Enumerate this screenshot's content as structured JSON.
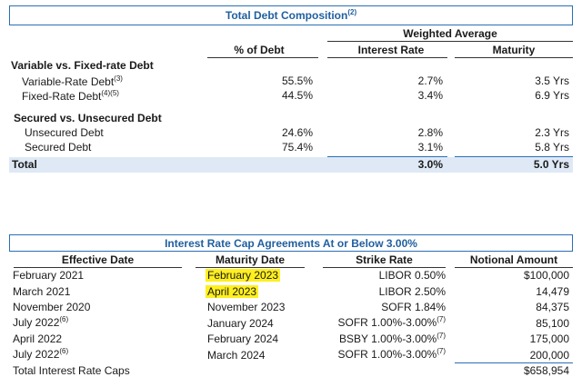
{
  "debt": {
    "title": "Total Debt Composition",
    "title_note": "(2)",
    "group_header": "Weighted Average",
    "col_pct": "% of Debt",
    "col_rate": "Interest Rate",
    "col_maturity": "Maturity",
    "sections": [
      {
        "title": "Variable vs. Fixed-rate Debt",
        "rows": [
          {
            "label": "Variable-Rate Debt",
            "note": "(3)",
            "pct": "55.5%",
            "rate": "2.7%",
            "maturity": "3.5 Yrs"
          },
          {
            "label": "Fixed-Rate Debt",
            "note": "(4)(5)",
            "pct": "44.5%",
            "rate": "3.4%",
            "maturity": "6.9 Yrs"
          }
        ]
      },
      {
        "title": "Secured vs. Unsecured Debt",
        "rows": [
          {
            "label": "Unsecured Debt",
            "note": "",
            "pct": "24.6%",
            "rate": "2.8%",
            "maturity": "2.3 Yrs"
          },
          {
            "label": "Secured Debt",
            "note": "",
            "pct": "75.4%",
            "rate": "3.1%",
            "maturity": "5.8 Yrs"
          }
        ]
      }
    ],
    "total": {
      "label": "Total",
      "rate": "3.0%",
      "maturity": "5.0 Yrs"
    }
  },
  "caps": {
    "title": "Interest Rate Cap Agreements At or Below 3.00%",
    "col_effective": "Effective Date",
    "col_maturity": "Maturity Date",
    "col_strike": "Strike Rate",
    "col_notional": "Notional Amount",
    "rows": [
      {
        "effective": "February 2021",
        "eff_note": "",
        "maturity": "February 2023",
        "highlight": true,
        "strike": "LIBOR 0.50%",
        "strike_note": "",
        "notional": "$100,000"
      },
      {
        "effective": "March 2021",
        "eff_note": "",
        "maturity": "April 2023",
        "highlight": true,
        "strike": "LIBOR 2.50%",
        "strike_note": "",
        "notional": "14,479"
      },
      {
        "effective": "November 2020",
        "eff_note": "",
        "maturity": "November 2023",
        "highlight": false,
        "strike": "SOFR 1.84%",
        "strike_note": "",
        "notional": "84,375"
      },
      {
        "effective": "July 2022",
        "eff_note": "(6)",
        "maturity": "January 2024",
        "highlight": false,
        "strike": "SOFR 1.00%-3.00%",
        "strike_note": "(7)",
        "notional": "85,100"
      },
      {
        "effective": "April 2022",
        "eff_note": "",
        "maturity": "February 2024",
        "highlight": false,
        "strike": "BSBY 1.00%-3.00%",
        "strike_note": "(7)",
        "notional": "175,000"
      },
      {
        "effective": "July 2022",
        "eff_note": "(6)",
        "maturity": "March 2024",
        "highlight": false,
        "strike": "SOFR 1.00%-3.00%",
        "strike_note": "(7)",
        "notional": "200,000"
      }
    ],
    "total": {
      "label": "Total Interest Rate Caps",
      "notional": "$658,954"
    }
  },
  "colors": {
    "accent": "#1f5f9f",
    "band": "#dfe9f6",
    "highlight": "#ffef1f"
  }
}
